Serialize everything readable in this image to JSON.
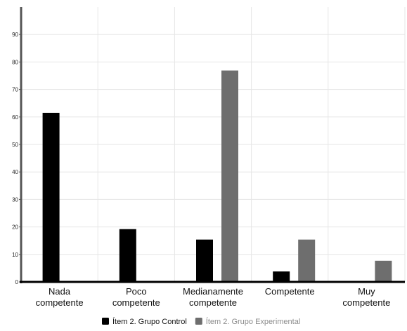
{
  "chart_data": {
    "type": "bar",
    "categories": [
      "Nada competente",
      "Poco competente",
      "Medianamente competente",
      "Competente",
      "Muy competente"
    ],
    "series": [
      {
        "name": "Ítem 2. Grupo Control",
        "values": [
          61.5,
          19.2,
          15.4,
          3.8,
          0
        ],
        "color": "#000000"
      },
      {
        "name": "Ítem 2. Grupo Experimental",
        "values": [
          0,
          0,
          76.9,
          15.4,
          7.7
        ],
        "color": "#6e6e6e"
      }
    ],
    "title": "",
    "xlabel": "",
    "ylabel": "",
    "ylim": [
      0,
      100
    ],
    "yticks": [
      0,
      10,
      20,
      30,
      40,
      50,
      60,
      70,
      80,
      90
    ],
    "grid": true,
    "legend_position": "bottom-center",
    "legend_text_colors": [
      "#111111",
      "#8c8c8c"
    ],
    "category_label_lines": [
      [
        "Nada",
        "competente"
      ],
      [
        "Poco",
        "competente"
      ],
      [
        "Medianamente",
        "competente"
      ],
      [
        "Competente"
      ],
      [
        "Muy",
        "competente"
      ]
    ]
  }
}
